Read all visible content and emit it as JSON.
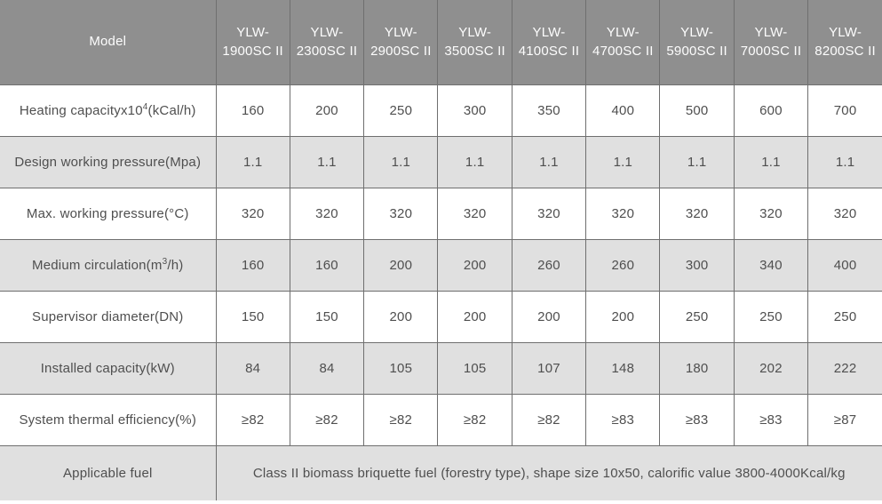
{
  "table": {
    "header": {
      "model_label": "Model",
      "models": [
        "YLW-1900SC II",
        "YLW-2300SC II",
        "YLW-2900SC II",
        "YLW-3500SC II",
        "YLW-4100SC II",
        "YLW-4700SC II",
        "YLW-5900SC II",
        "YLW-7000SC II",
        "YLW-8200SC II"
      ]
    },
    "rows": [
      {
        "label_prefix": "Heating capacityx10",
        "label_sup": "4",
        "label_suffix": "(kCal/h)",
        "values": [
          "160",
          "200",
          "250",
          "300",
          "350",
          "400",
          "500",
          "600",
          "700"
        ]
      },
      {
        "label_prefix": "Design working pressure(Mpa)",
        "label_sup": "",
        "label_suffix": "",
        "values": [
          "1.1",
          "1.1",
          "1.1",
          "1.1",
          "1.1",
          "1.1",
          "1.1",
          "1.1",
          "1.1"
        ]
      },
      {
        "label_prefix": "Max. working pressure(°C)",
        "label_sup": "",
        "label_suffix": "",
        "values": [
          "320",
          "320",
          "320",
          "320",
          "320",
          "320",
          "320",
          "320",
          "320"
        ]
      },
      {
        "label_prefix": "Medium circulation(m",
        "label_sup": "3",
        "label_suffix": "/h)",
        "values": [
          "160",
          "160",
          "200",
          "200",
          "260",
          "260",
          "300",
          "340",
          "400"
        ]
      },
      {
        "label_prefix": "Supervisor diameter(DN)",
        "label_sup": "",
        "label_suffix": "",
        "values": [
          "150",
          "150",
          "200",
          "200",
          "200",
          "200",
          "250",
          "250",
          "250"
        ]
      },
      {
        "label_prefix": "Installed capacity(kW)",
        "label_sup": "",
        "label_suffix": "",
        "values": [
          "84",
          "84",
          "105",
          "105",
          "107",
          "148",
          "180",
          "202",
          "222"
        ]
      },
      {
        "label_prefix": "System thermal efficiency(%)",
        "label_sup": "",
        "label_suffix": "",
        "values": [
          "≥82",
          "≥82",
          "≥82",
          "≥82",
          "≥82",
          "≥83",
          "≥83",
          "≥83",
          "≥87"
        ]
      },
      {
        "label_prefix": "Applicable fuel",
        "label_sup": "",
        "label_suffix": "",
        "merged_value": "Class II biomass briquette fuel (forestry type), shape size 10x50, calorific value 3800-4000Kcal/kg"
      }
    ],
    "colors": {
      "header_bg": "#8f8f8f",
      "header_text": "#fdfdfd",
      "alt_row_bg": "#e0e0e0",
      "border": "#6f6f6f",
      "body_text": "#4f4f4f"
    }
  }
}
